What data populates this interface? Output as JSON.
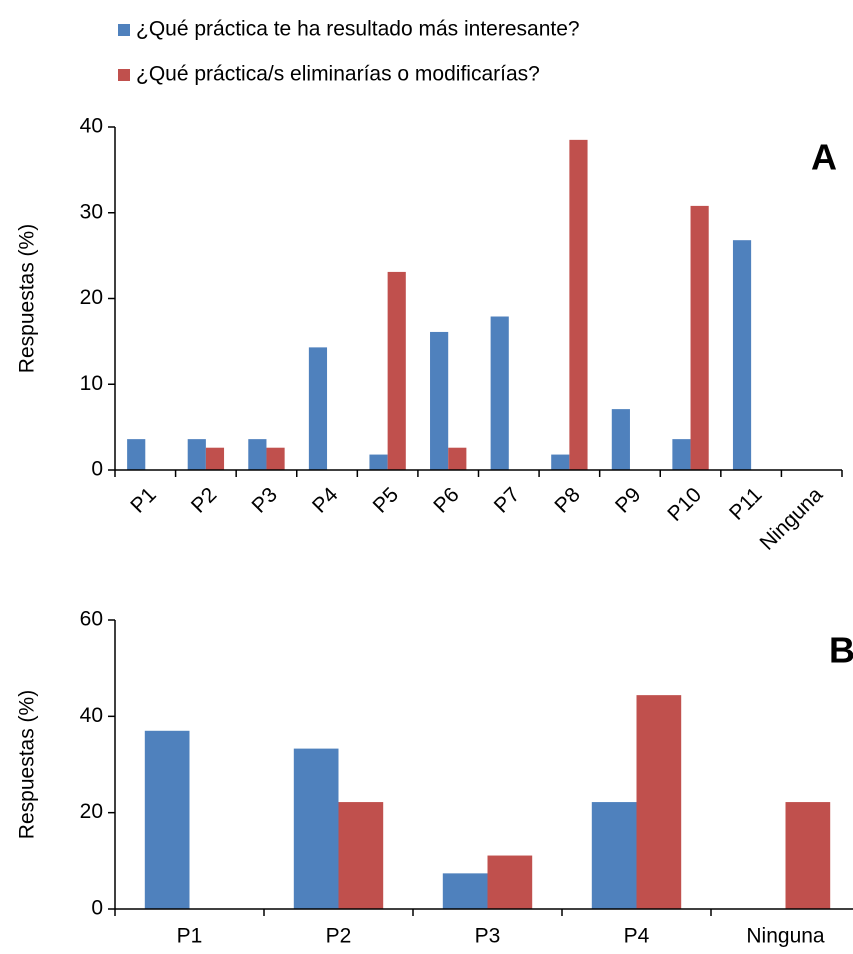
{
  "chart_data": [
    {
      "type": "bar",
      "annotation": "A",
      "ylabel": "Respuestas (%)",
      "categories": [
        "P1",
        "P2",
        "P3",
        "P4",
        "P5",
        "P6",
        "P7",
        "P8",
        "P9",
        "P10",
        "P11",
        "Ninguna"
      ],
      "series": [
        {
          "name": "¿Qué práctica te ha resultado más interesante?",
          "color": "#4f81bd",
          "values": [
            3.6,
            3.6,
            3.6,
            14.3,
            1.8,
            16.1,
            17.9,
            1.8,
            7.1,
            3.6,
            26.8,
            0
          ]
        },
        {
          "name": "¿Qué práctica/s eliminarías o modificarías?",
          "color": "#c0504d",
          "values": [
            0,
            2.6,
            2.6,
            0,
            23.1,
            2.6,
            0,
            38.5,
            0,
            30.8,
            0,
            0
          ]
        }
      ],
      "ylim": [
        0,
        40
      ],
      "yticks": [
        0,
        10,
        20,
        30,
        40
      ],
      "rotate_xlabels": true
    },
    {
      "type": "bar",
      "annotation": "B",
      "ylabel": "Respuestas (%)",
      "categories": [
        "P1",
        "P2",
        "P3",
        "P4",
        "Ninguna"
      ],
      "series": [
        {
          "color": "#4f81bd",
          "values": [
            37.0,
            33.3,
            7.4,
            22.2,
            0
          ]
        },
        {
          "color": "#c0504d",
          "values": [
            0,
            22.2,
            11.1,
            44.4,
            22.2
          ]
        }
      ],
      "ylim": [
        0,
        60
      ],
      "yticks": [
        0,
        20,
        40,
        60
      ],
      "rotate_xlabels": false
    }
  ]
}
